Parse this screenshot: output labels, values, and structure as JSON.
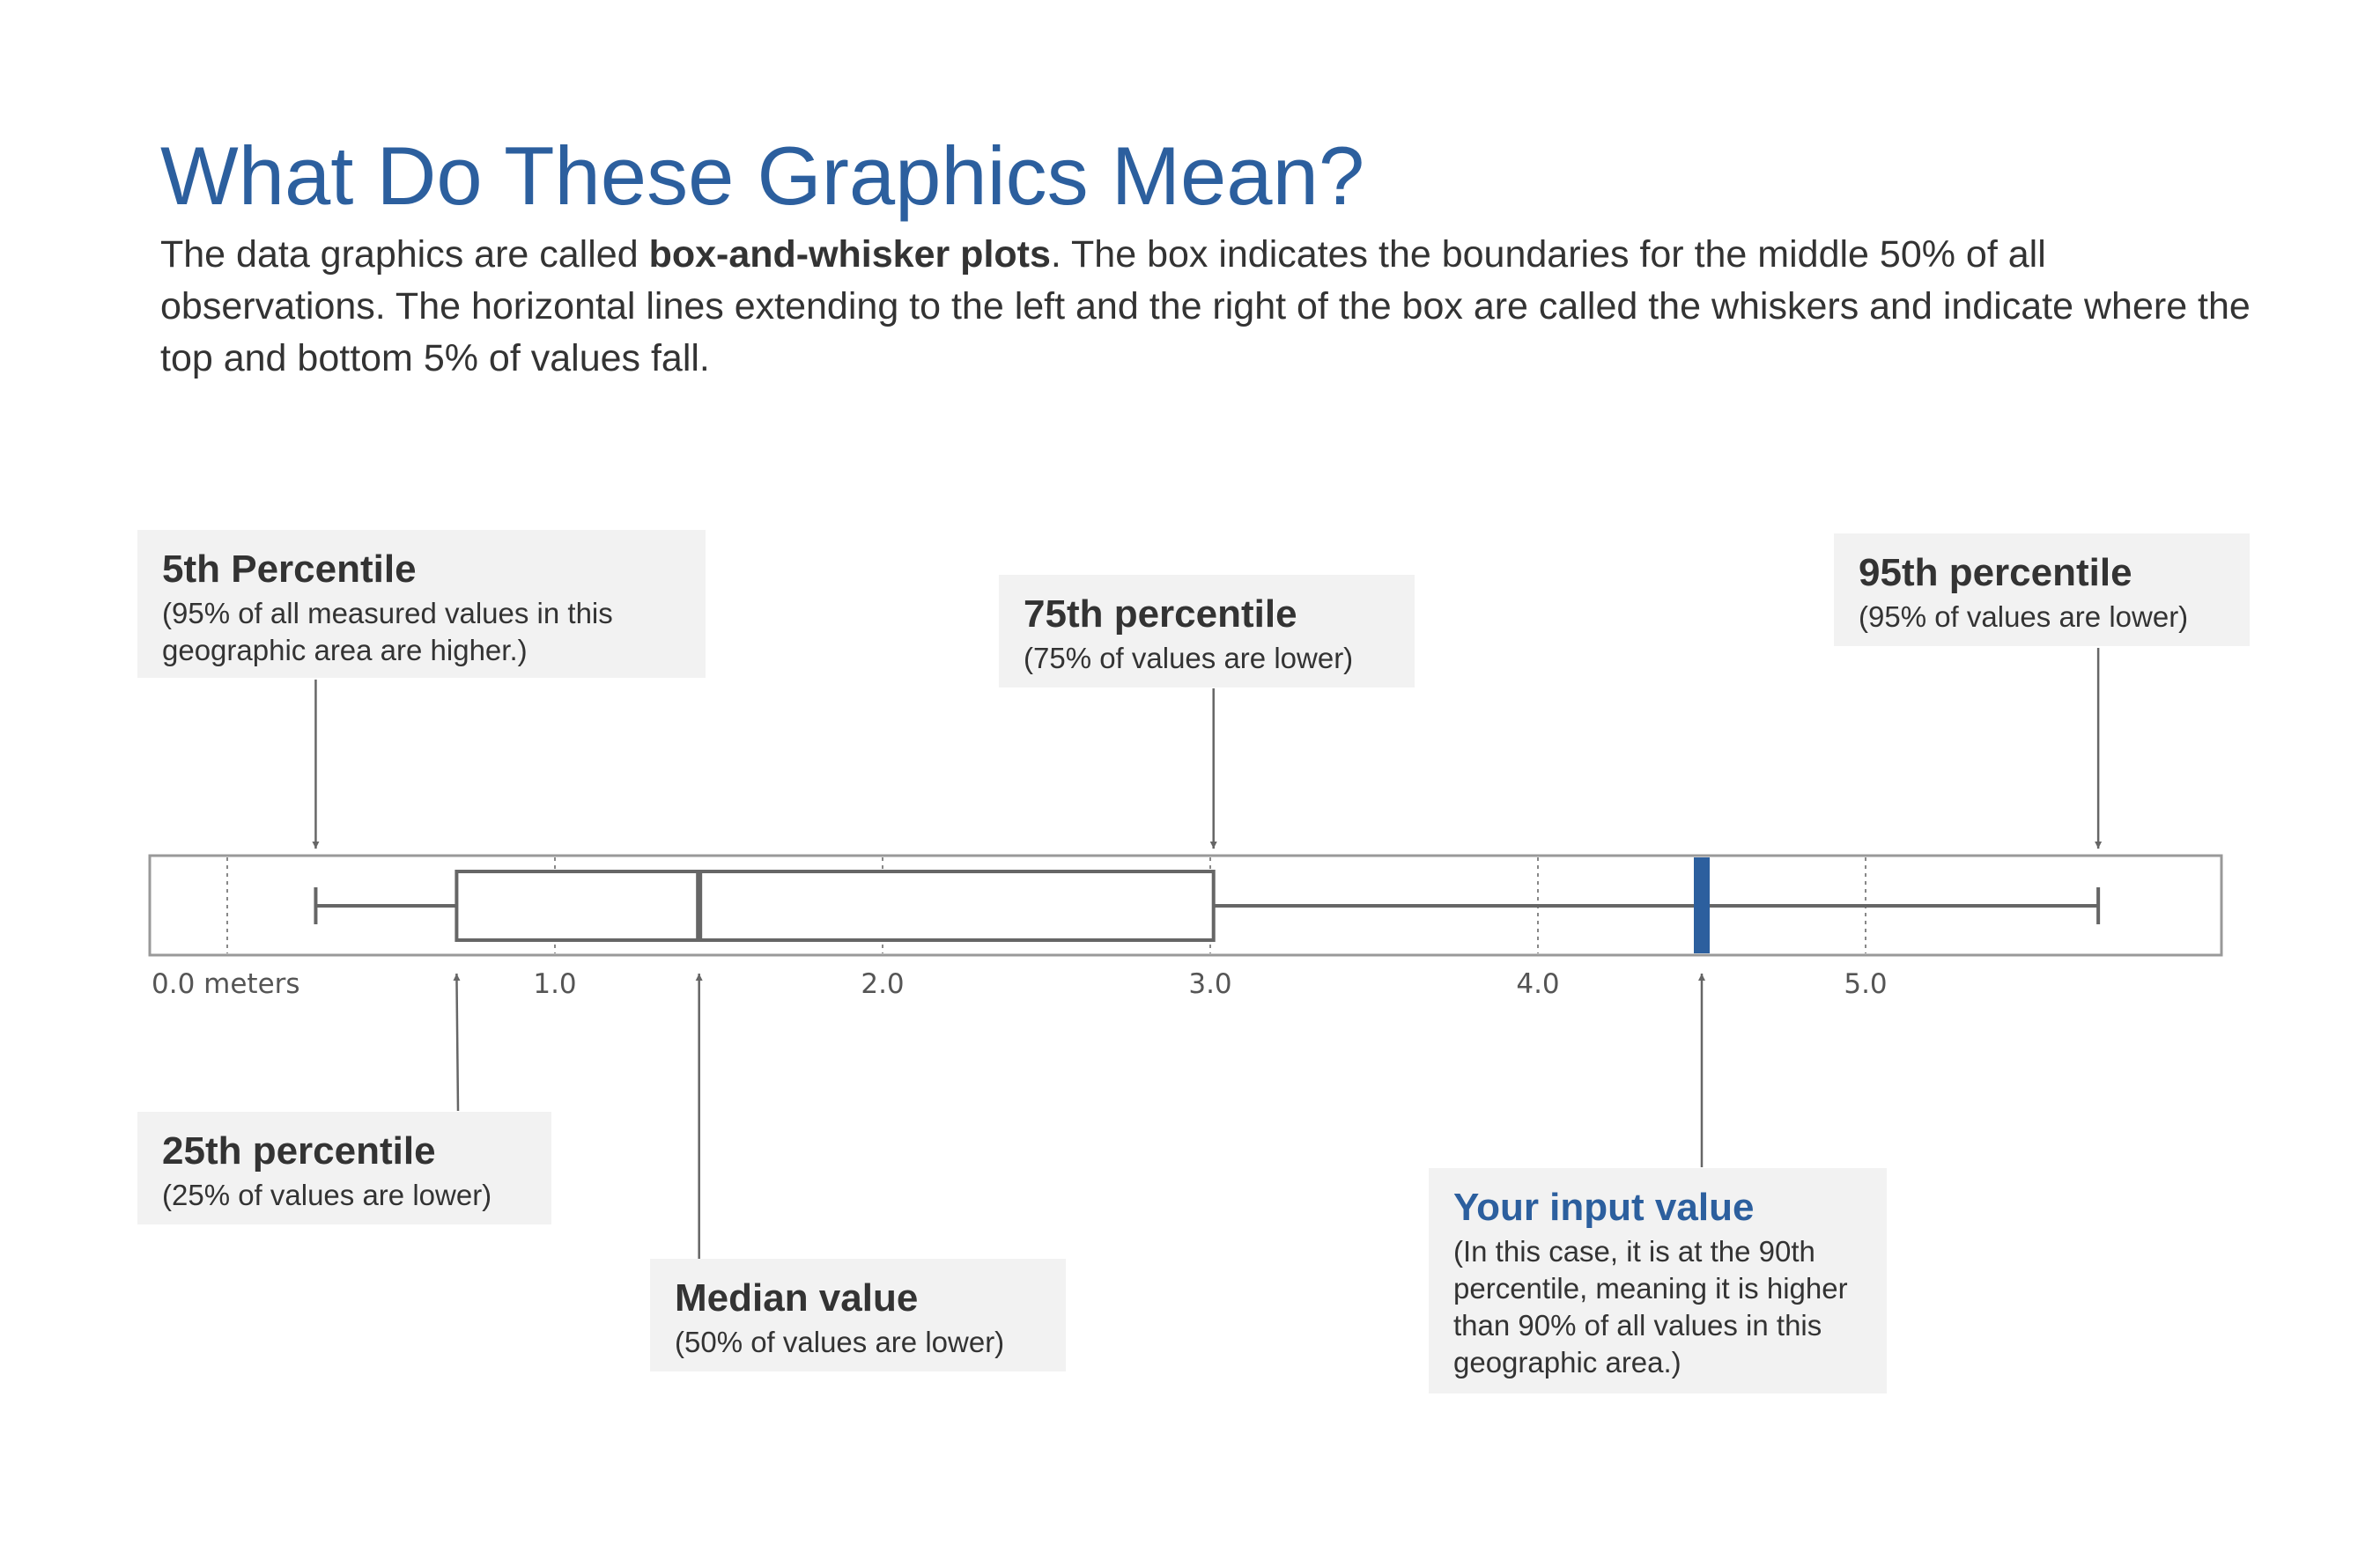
{
  "header": {
    "title": "What Do These Graphics Mean?",
    "intro_before": "The data graphics are called ",
    "intro_bold": "box-and-whisker plots",
    "intro_after": ". The box indicates the boundaries for the middle 50% of all observations. The horizontal lines extending to the left and the right of the box are called the whiskers and indicate where the top and bottom 5% of values fall."
  },
  "callouts": {
    "p5": {
      "title": "5th Percentile",
      "desc": "(95% of all measured values in this geographic area are higher.)"
    },
    "p75": {
      "title": "75th percentile",
      "desc": "(75% of values are lower)"
    },
    "p95": {
      "title": "95th percentile",
      "desc": "(95% of values are lower)"
    },
    "p25": {
      "title": "25th percentile",
      "desc": "(25% of values are lower)"
    },
    "median": {
      "title": "Median value",
      "desc": "(50% of values are lower)"
    },
    "input": {
      "title": "Your input value",
      "desc": "(In this case, it is at the 90th percentile, meaning it is higher than 90% of all values in this geographic area.)"
    }
  },
  "axis": {
    "tick_labels": [
      "0.0 meters",
      "1.0",
      "2.0",
      "3.0",
      "4.0",
      "5.0"
    ]
  },
  "colors": {
    "title": "#2c5f9e",
    "input_marker": "#2c5f9e",
    "box_stroke": "#666666",
    "callout_bg": "#f2f2f2"
  },
  "chart_data": {
    "type": "box",
    "xlim": [
      0.0,
      6.0
    ],
    "ticks": [
      0.0,
      1.0,
      2.0,
      3.0,
      4.0,
      5.0
    ],
    "grid": true,
    "p5": 0.27,
    "p25": 0.7,
    "median": 1.44,
    "p75": 3.01,
    "p95": 5.71,
    "input_value": 4.5
  }
}
